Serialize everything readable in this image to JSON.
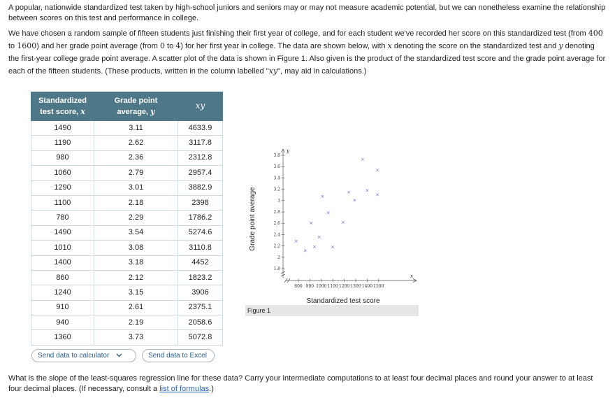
{
  "intro": {
    "text": "A popular, nationwide standardized test taken by high-school juniors and seniors may or may not measure academic potential, but we can nonetheless examine the relationship between scores on this test and performance in college."
  },
  "description": {
    "part1": "We have chosen a random sample of fifteen students just finishing their first year of college, and for each student we've recorded her score on this standardized test (from ",
    "min_score": "400",
    "part2": " to ",
    "max_score": "1600",
    "part3": ") and her grade point average (from ",
    "min_gpa": "0",
    "part4": " to ",
    "max_gpa": "4",
    "part5": ") for her first year in college. The data are shown below, with ",
    "x_var": "x",
    "part6": " denoting the score on the standardized test and ",
    "y_var": "y",
    "part7": " denoting the first-year college grade point average. A scatter plot of the data is shown in Figure 1. Also given is the product of the standardized test score and the grade point average for each of the fifteen students. (These products, written in the column labelled \"",
    "xy_var": "xy",
    "part8": "\", may aid in calculations.)"
  },
  "table": {
    "header_x_line1": "Standardized",
    "header_x_line2": "test score, ",
    "header_x_var": "x",
    "header_y_line1": "Grade point",
    "header_y_line2": "average, ",
    "header_y_var": "y",
    "header_xy": "xy",
    "rows": [
      {
        "x": "1490",
        "y": "3.11",
        "xy": "4633.9"
      },
      {
        "x": "1190",
        "y": "2.62",
        "xy": "3117.8"
      },
      {
        "x": "980",
        "y": "2.36",
        "xy": "2312.8"
      },
      {
        "x": "1060",
        "y": "2.79",
        "xy": "2957.4"
      },
      {
        "x": "1290",
        "y": "3.01",
        "xy": "3882.9"
      },
      {
        "x": "1100",
        "y": "2.18",
        "xy": "2398"
      },
      {
        "x": "780",
        "y": "2.29",
        "xy": "1786.2"
      },
      {
        "x": "1490",
        "y": "3.54",
        "xy": "5274.6"
      },
      {
        "x": "1010",
        "y": "3.08",
        "xy": "3110.8"
      },
      {
        "x": "1400",
        "y": "3.18",
        "xy": "4452"
      },
      {
        "x": "860",
        "y": "2.12",
        "xy": "1823.2"
      },
      {
        "x": "1240",
        "y": "3.15",
        "xy": "3906"
      },
      {
        "x": "910",
        "y": "2.61",
        "xy": "2375.1"
      },
      {
        "x": "940",
        "y": "2.19",
        "xy": "2058.6"
      },
      {
        "x": "1360",
        "y": "3.73",
        "xy": "5072.8"
      }
    ]
  },
  "buttons": {
    "calculator": "Send data to calculator",
    "excel": "Send data to Excel"
  },
  "figure": {
    "caption": "Figure 1",
    "xlabel": "Standardized test score",
    "ylabel": "Grade point average",
    "x_axis_var": "x",
    "y_axis_var": "y"
  },
  "chart_data": {
    "type": "scatter",
    "title": "",
    "xlabel": "Standardized test score",
    "ylabel": "Grade point average",
    "xlim": [
      700,
      1600
    ],
    "ylim": [
      1.7,
      3.9
    ],
    "xticks": [
      800,
      900,
      1000,
      1100,
      1200,
      1300,
      1400,
      1500
    ],
    "yticks": [
      1.8,
      2,
      2.2,
      2.4,
      2.6,
      2.8,
      3,
      3.2,
      3.4,
      3.6,
      3.8
    ],
    "ytick_labels": [
      "1.8",
      "2",
      "2.2",
      "2.4",
      "2.6",
      "2.8",
      "3",
      "3.2",
      "3.4",
      "3.6",
      "3.8"
    ],
    "marker": "x",
    "marker_color": "#6f63d8",
    "points": [
      {
        "x": 1490,
        "y": 3.11
      },
      {
        "x": 1190,
        "y": 2.62
      },
      {
        "x": 980,
        "y": 2.36
      },
      {
        "x": 1060,
        "y": 2.79
      },
      {
        "x": 1290,
        "y": 3.01
      },
      {
        "x": 1100,
        "y": 2.18
      },
      {
        "x": 780,
        "y": 2.29
      },
      {
        "x": 1490,
        "y": 3.54
      },
      {
        "x": 1010,
        "y": 3.08
      },
      {
        "x": 1400,
        "y": 3.18
      },
      {
        "x": 860,
        "y": 2.12
      },
      {
        "x": 1240,
        "y": 3.15
      },
      {
        "x": 910,
        "y": 2.61
      },
      {
        "x": 940,
        "y": 2.19
      },
      {
        "x": 1360,
        "y": 3.73
      }
    ]
  },
  "question": {
    "text": "What is the slope of the least-squares regression line for these data? Carry your intermediate computations to at least four decimal places and round your answer to at least four decimal places. (If necessary, consult a ",
    "link": "list of formulas",
    "end": ".)"
  }
}
